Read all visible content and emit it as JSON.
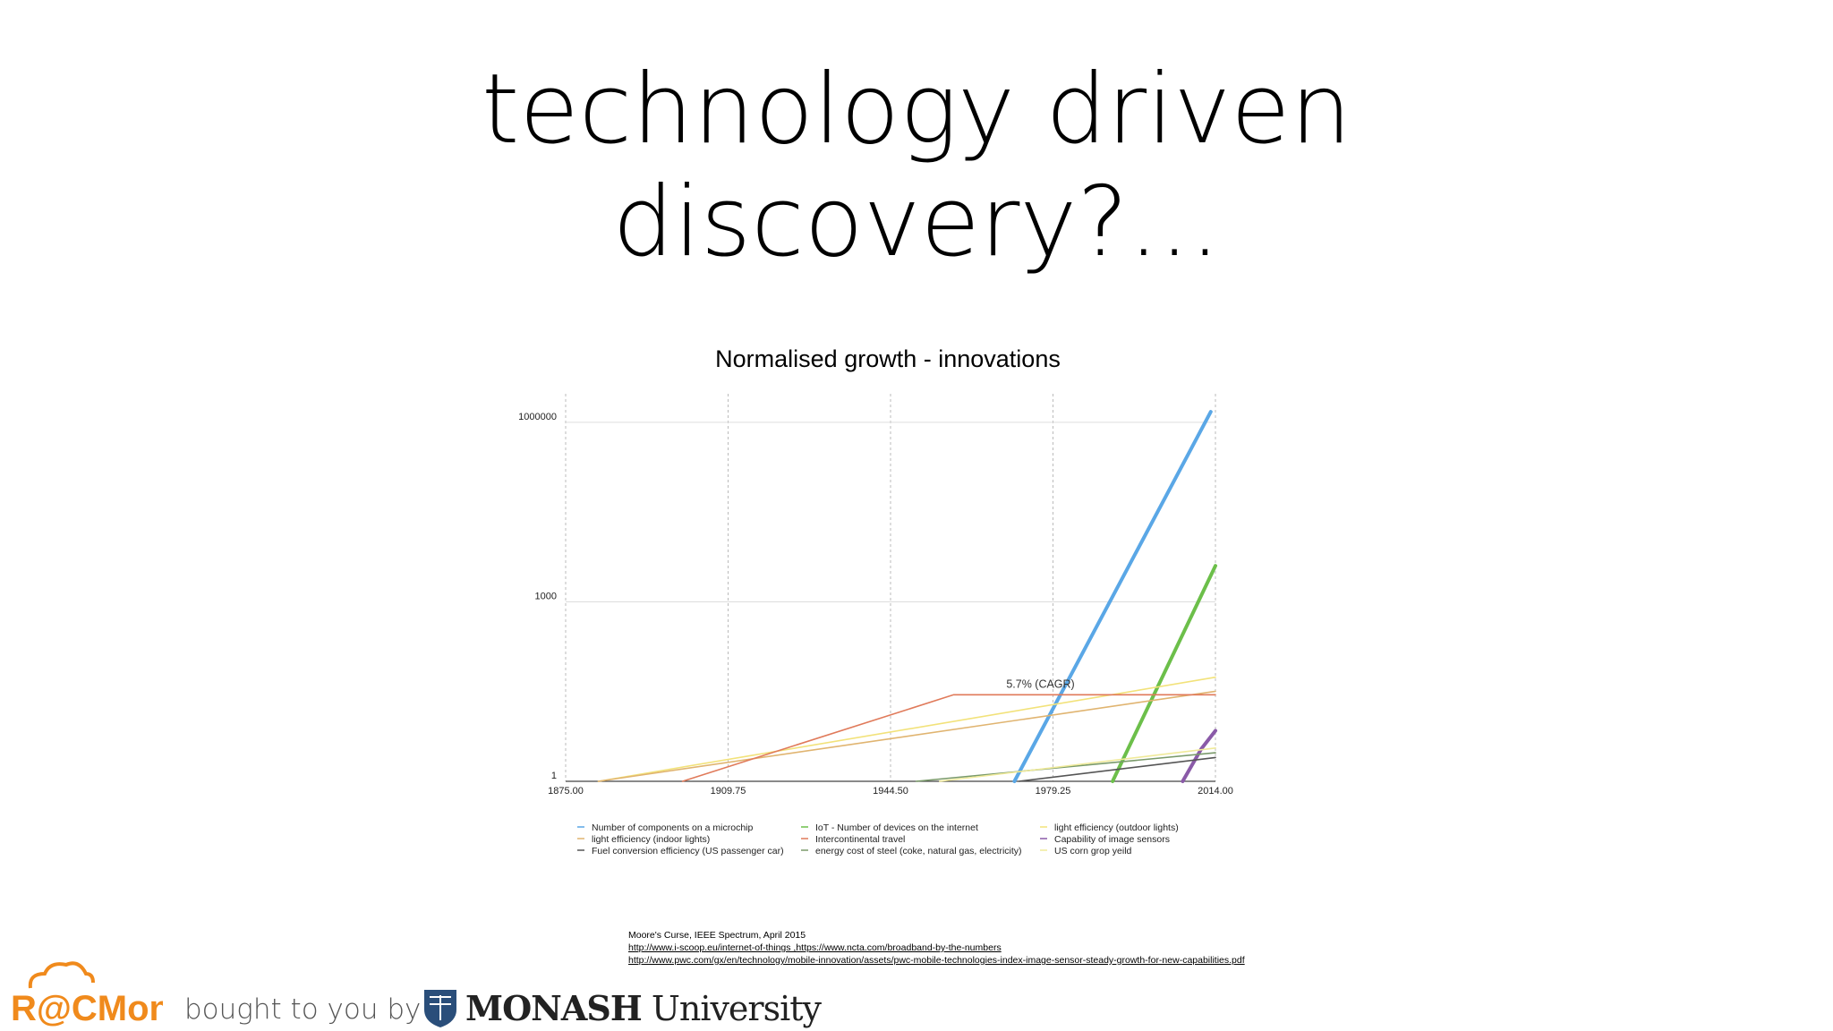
{
  "slide": {
    "title_line1": "technology driven",
    "title_line2": "discovery?...",
    "references": [
      "Moore's Curse, IEEE Spectrum, April 2015",
      "http://www.i-scoop.eu/internet-of-things ,https://www.ncta.com/broadband-by-the-numbers",
      "http://www.pwc.com/gx/en/technology/mobile-innovation/assets/pwc-mobile-technologies-index-image-sensor-steady-growth-for-new-capabilities.pdf"
    ],
    "footer": {
      "brand": "R@CMon",
      "bought_text": "bought to you by",
      "university_bold": "MONASH",
      "university_rest": " University"
    }
  },
  "chart_data": {
    "type": "line",
    "title": "Normalised growth - innovations",
    "xlabel": "",
    "ylabel": "",
    "y_scale": "log",
    "xlim": [
      1875,
      2014
    ],
    "ylim": [
      1,
      3000000
    ],
    "x_ticks": [
      "1875.00",
      "1909.75",
      "1944.50",
      "1979.25",
      "2014.00"
    ],
    "x_tick_values": [
      1875,
      1909.75,
      1944.5,
      1979.25,
      2014
    ],
    "y_ticks": [
      "1",
      "1000",
      "1000000"
    ],
    "y_tick_values": [
      1,
      1000,
      1000000
    ],
    "grid": true,
    "legend_position": "bottom",
    "annotation": {
      "text": "5.7% (CAGR)",
      "x": 1967,
      "y": 28
    },
    "series": [
      {
        "name": "Number of components on a microchip",
        "color": "#5aa7e6",
        "width": 4,
        "x": [
          1971,
          2013
        ],
        "y": [
          1,
          1500000
        ]
      },
      {
        "name": "IoT - Number of devices on the internet",
        "color": "#6cbf4a",
        "width": 4,
        "x": [
          1992,
          2014
        ],
        "y": [
          1,
          4000
        ]
      },
      {
        "name": "light efficiency (outdoor lights)",
        "color": "#f2e27a",
        "width": 1.6,
        "x": [
          1882,
          2014
        ],
        "y": [
          1,
          55
        ]
      },
      {
        "name": "light efficiency (indoor lights)",
        "color": "#e0b470",
        "width": 1.6,
        "x": [
          1882,
          2014
        ],
        "y": [
          1,
          32
        ]
      },
      {
        "name": "Intercontinental travel",
        "color": "#e07a5a",
        "width": 1.6,
        "x": [
          1900,
          1958,
          2014
        ],
        "y": [
          1,
          28,
          28
        ]
      },
      {
        "name": "Capability of image sensors",
        "color": "#8a5aa8",
        "width": 4,
        "x": [
          2007,
          2011,
          2014
        ],
        "y": [
          1,
          3.5,
          7
        ]
      },
      {
        "name": "Fuel conversion efficiency (US passenger car)",
        "color": "#555555",
        "width": 1.6,
        "x": [
          1972,
          2014
        ],
        "y": [
          1,
          2.5
        ]
      },
      {
        "name": "energy cost of steel (coke, natural gas, electricity)",
        "color": "#7a9a6a",
        "width": 1.6,
        "x": [
          1950,
          2014
        ],
        "y": [
          1,
          3
        ]
      },
      {
        "name": "US corn grop yeild",
        "color": "#f0ea9a",
        "width": 1.6,
        "x": [
          1955,
          2014
        ],
        "y": [
          1,
          3.6
        ]
      }
    ]
  }
}
